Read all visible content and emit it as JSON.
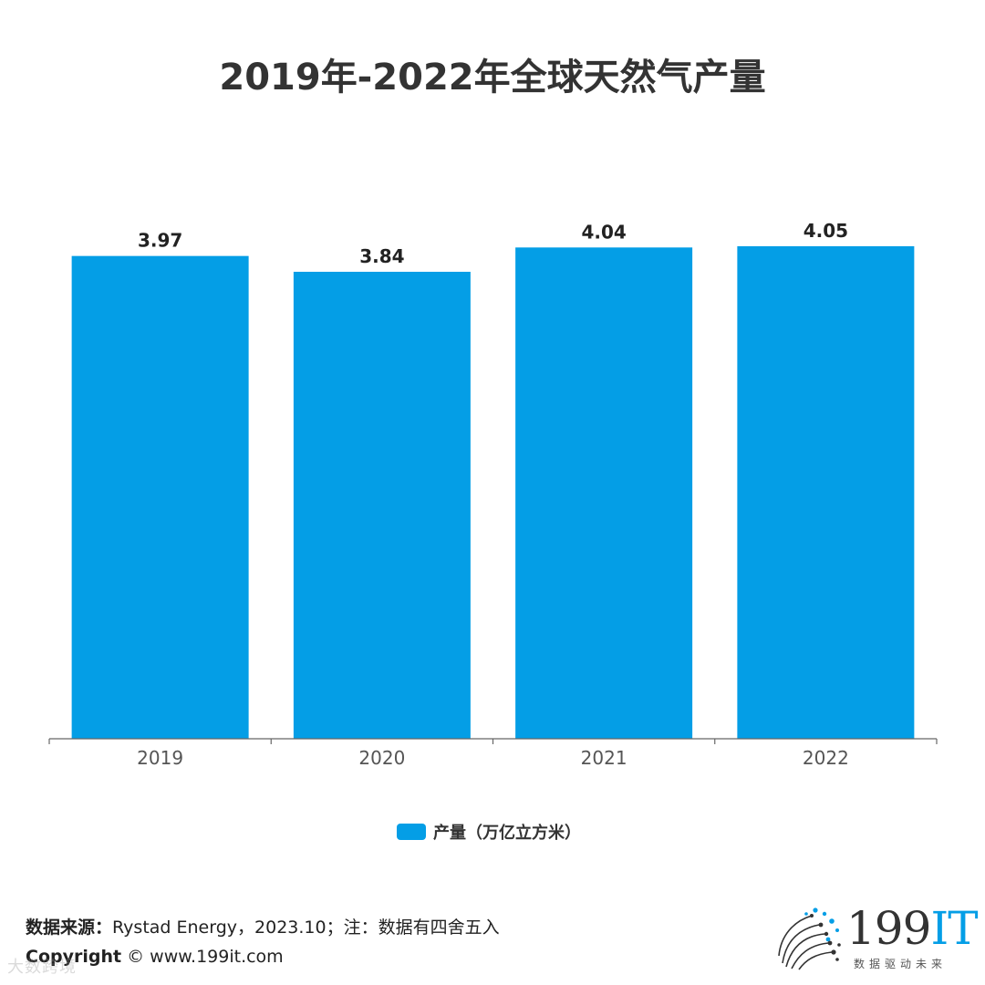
{
  "title": "2019年-2022年全球天然气产量",
  "chart_data": {
    "type": "bar",
    "categories": [
      "2019",
      "2020",
      "2021",
      "2022"
    ],
    "series": [
      {
        "name": "产量（万亿立方米）",
        "values": [
          3.97,
          3.84,
          4.04,
          4.05
        ],
        "labels": [
          "3.97",
          "3.84",
          "4.04",
          "4.05"
        ]
      }
    ],
    "ylim": [
      0,
      4.05
    ],
    "xlabel": "",
    "ylabel": "",
    "grid": false,
    "legend": "bottom-center",
    "color": "#049ee6"
  },
  "legend": {
    "label": "产量（万亿立方米）"
  },
  "footer": {
    "source_label": "数据来源：",
    "source_text": "Rystad Energy，2023.10；注：数据有四舍五入",
    "copyright_label": "Copyright",
    "copyright_text": "© www.199it.com"
  },
  "watermark": "大数跨境",
  "logo": {
    "main": "199",
    "accent": "IT",
    "tagline": "数据驱动未来"
  }
}
